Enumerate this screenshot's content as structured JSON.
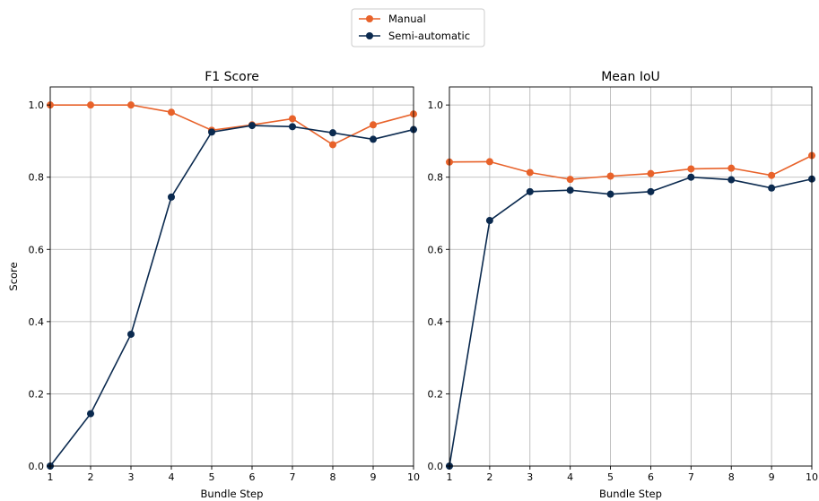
{
  "legend": {
    "items": [
      {
        "label": "Manual",
        "color": "#E8622A"
      },
      {
        "label": "Semi-automatic",
        "color": "#0B2A4F"
      }
    ]
  },
  "chart_data": [
    {
      "type": "line",
      "title": "F1 Score",
      "xlabel": "Bundle Step",
      "ylabel": "Score",
      "xlim": [
        1,
        10
      ],
      "ylim": [
        0,
        1.05
      ],
      "xticks": [
        1,
        2,
        3,
        4,
        5,
        6,
        7,
        8,
        9,
        10
      ],
      "yticks": [
        0.0,
        0.2,
        0.4,
        0.6,
        0.8,
        1.0
      ],
      "grid": true,
      "x": [
        1,
        2,
        3,
        4,
        5,
        6,
        7,
        8,
        9,
        10
      ],
      "series": [
        {
          "name": "Manual",
          "color": "#E8622A",
          "values": [
            1.0,
            1.0,
            1.0,
            0.98,
            0.93,
            0.945,
            0.962,
            0.89,
            0.945,
            0.975
          ]
        },
        {
          "name": "Semi-automatic",
          "color": "#0B2A4F",
          "values": [
            0.0,
            0.145,
            0.365,
            0.745,
            0.925,
            0.943,
            0.94,
            0.923,
            0.905,
            0.932
          ]
        }
      ]
    },
    {
      "type": "line",
      "title": "Mean IoU",
      "xlabel": "Bundle Step",
      "ylabel": "",
      "xlim": [
        1,
        10
      ],
      "ylim": [
        0,
        1.05
      ],
      "xticks": [
        1,
        2,
        3,
        4,
        5,
        6,
        7,
        8,
        9,
        10
      ],
      "yticks": [
        0.0,
        0.2,
        0.4,
        0.6,
        0.8,
        1.0
      ],
      "grid": true,
      "x": [
        1,
        2,
        3,
        4,
        5,
        6,
        7,
        8,
        9,
        10
      ],
      "series": [
        {
          "name": "Manual",
          "color": "#E8622A",
          "values": [
            0.842,
            0.843,
            0.813,
            0.794,
            0.803,
            0.81,
            0.823,
            0.825,
            0.805,
            0.86
          ]
        },
        {
          "name": "Semi-automatic",
          "color": "#0B2A4F",
          "values": [
            0.0,
            0.68,
            0.76,
            0.764,
            0.753,
            0.76,
            0.8,
            0.793,
            0.77,
            0.795
          ]
        }
      ]
    }
  ]
}
